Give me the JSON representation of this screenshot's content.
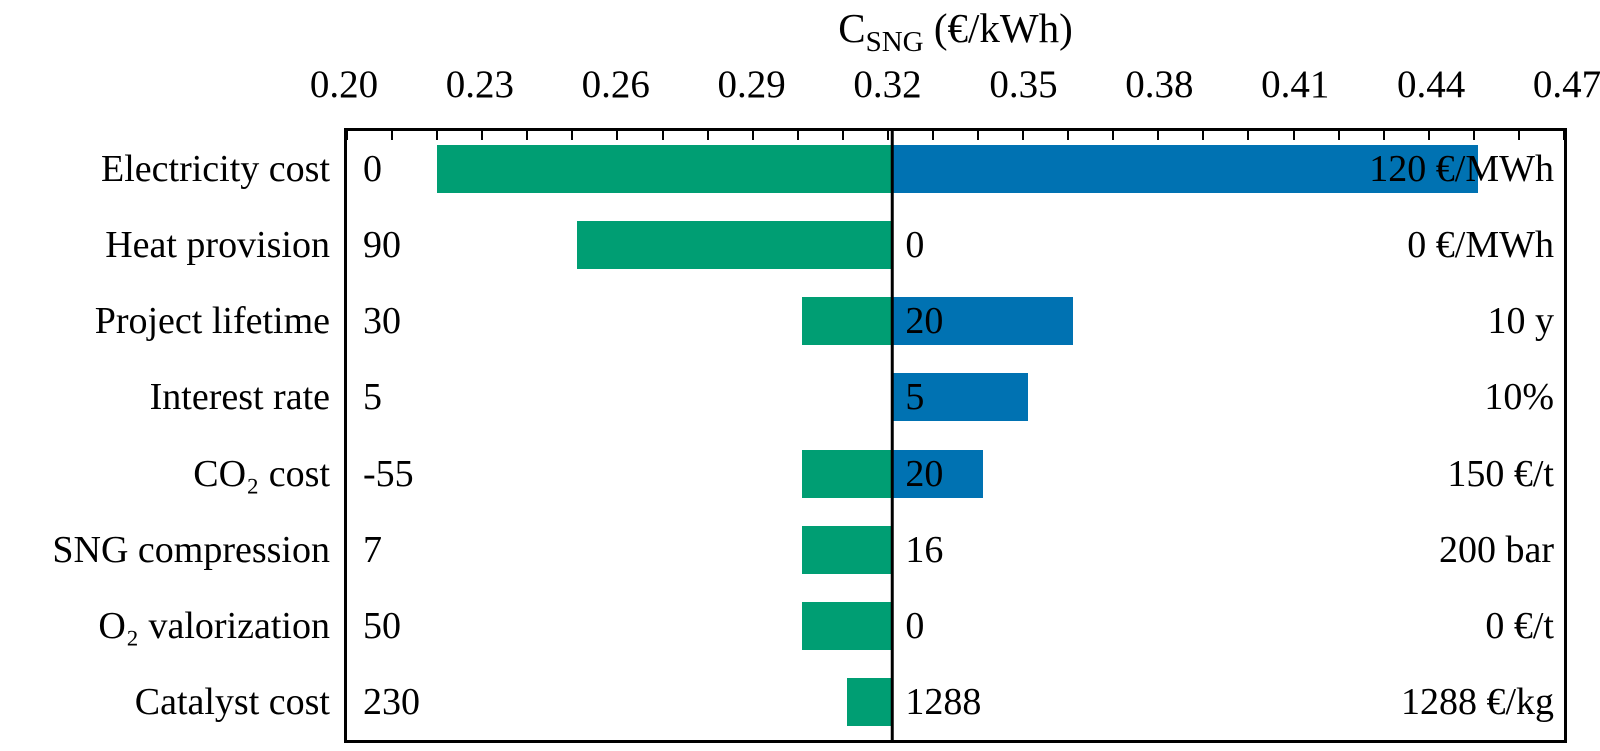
{
  "axis_title": {
    "base": "C",
    "sub": "SNG",
    "unit": " (€/kWh)"
  },
  "chart_data": {
    "type": "bar",
    "subtype": "tornado-sensitivity",
    "orientation": "horizontal",
    "title": "C_SNG (€/kWh)",
    "axis": {
      "position": "top",
      "min": 0.2,
      "max": 0.47,
      "major_step": 0.03,
      "minor_step": 0.01,
      "tick_labels": [
        "0.20",
        "0.23",
        "0.26",
        "0.29",
        "0.32",
        "0.35",
        "0.38",
        "0.41",
        "0.44",
        "0.47"
      ]
    },
    "baseline_value": 0.321,
    "colors": {
      "low_bar": "#009E73",
      "high_bar": "#0072B2",
      "line": "#000000"
    },
    "legend": "none",
    "grid": false,
    "rows": [
      {
        "category": "Electricity cost",
        "low_value": 0.22,
        "high_value": 0.451,
        "low_label": "0",
        "base_label": "",
        "high_label": "120 €/MWh"
      },
      {
        "category": "Heat provision",
        "low_value": 0.251,
        "high_value": 0.321,
        "low_label": "90",
        "base_label": "0",
        "high_label": "0 €/MWh"
      },
      {
        "category": "Project lifetime",
        "low_value": 0.301,
        "high_value": 0.361,
        "low_label": "30",
        "base_label": "20",
        "high_label": "10 y"
      },
      {
        "category": "Interest rate",
        "low_value": 0.321,
        "high_value": 0.351,
        "low_label": "5",
        "base_label": "5",
        "high_label": "10%"
      },
      {
        "category": "CO₂ cost",
        "low_value": 0.301,
        "high_value": 0.341,
        "low_label": "-55",
        "base_label": "20",
        "high_label": "150 €/t"
      },
      {
        "category": "SNG compression",
        "low_value": 0.301,
        "high_value": 0.321,
        "low_label": "7",
        "base_label": "16",
        "high_label": "200 bar"
      },
      {
        "category": "O₂ valorization",
        "low_value": 0.301,
        "high_value": 0.321,
        "low_label": "50",
        "base_label": "0",
        "high_label": "0 €/t"
      },
      {
        "category": "Catalyst cost",
        "low_value": 0.311,
        "high_value": 0.321,
        "low_label": "230",
        "base_label": "1288",
        "high_label": "1288 €/kg"
      }
    ]
  }
}
